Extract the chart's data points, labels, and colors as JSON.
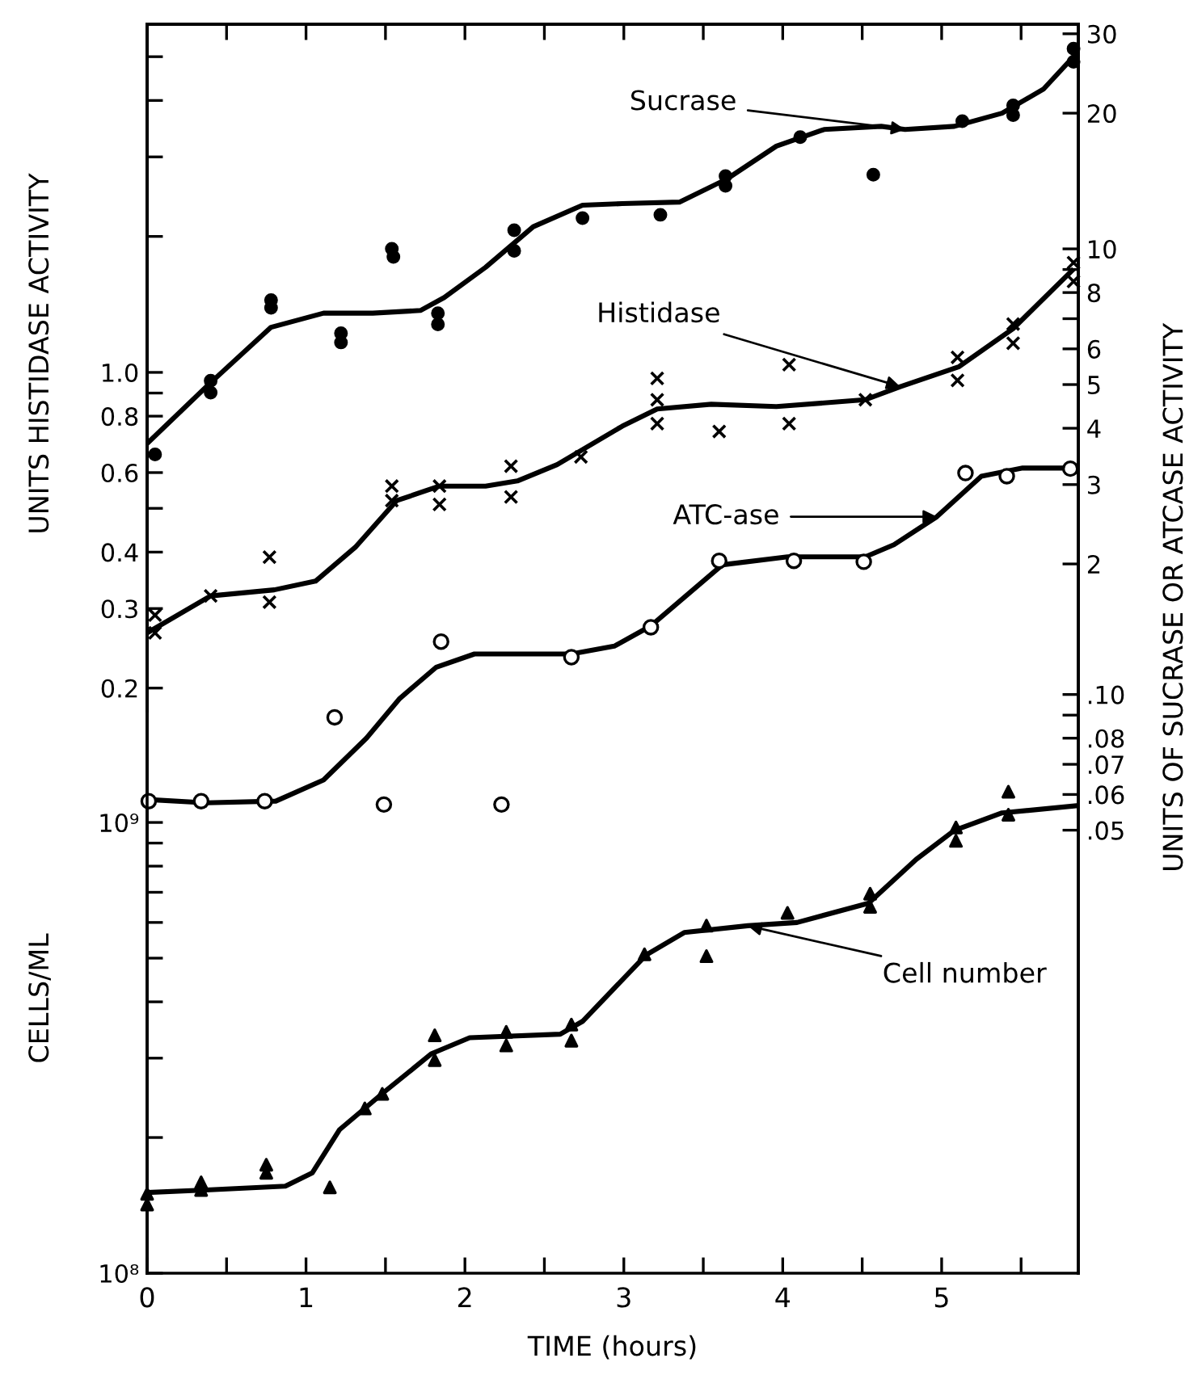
{
  "chart_data": [
    {
      "type": "line",
      "ylabel": "UNITS HISTIDASE ACTIVITY",
      "xlim": [
        0,
        5.86
      ],
      "tick_labels": "y",
      "ylim": [
        0.178,
        5.9
      ],
      "yticks": [
        {
          "value": 0.2,
          "label": "0.2"
        },
        {
          "value": 0.3,
          "label": "0.3"
        },
        {
          "value": 0.4,
          "label": "0.4"
        },
        {
          "value": 0.5,
          "label": null
        },
        {
          "value": 0.6,
          "label": "0.6"
        },
        {
          "value": 0.8,
          "label": "0.8"
        },
        {
          "value": 0.9,
          "label": null
        },
        {
          "value": 1.0,
          "label": "1.0"
        },
        {
          "value": 2,
          "label": null
        },
        {
          "value": 3,
          "label": null
        },
        {
          "value": 4,
          "label": null
        },
        {
          "value": 5,
          "label": null
        }
      ],
      "log": true,
      "grid": false,
      "legend": false,
      "series": [
        {
          "type": "scatter",
          "marker": "cross",
          "color": "#000000",
          "x": [
            0.05,
            0.05,
            0.4,
            0.77,
            0.77,
            1.54,
            1.54,
            1.84,
            1.84,
            2.29,
            2.29,
            2.73,
            3.21,
            3.21,
            3.21,
            3.6,
            4.04,
            4.04,
            4.52,
            5.1,
            5.1,
            5.45,
            5.45,
            5.83,
            5.83
          ],
          "values": [
            0.29,
            0.265,
            0.32,
            0.39,
            0.31,
            0.56,
            0.52,
            0.56,
            0.51,
            0.53,
            0.62,
            0.65,
            0.97,
            0.87,
            0.77,
            0.74,
            1.04,
            0.77,
            0.87,
            1.08,
            0.96,
            1.28,
            1.16,
            1.75,
            1.59
          ]
        },
        {
          "name": "Histidase",
          "color": "#000000",
          "line_style": "solid",
          "x": [
            0,
            0.4,
            0.8,
            1.06,
            1.31,
            1.57,
            1.84,
            2.13,
            2.33,
            2.58,
            2.99,
            3.21,
            3.55,
            3.96,
            4.52,
            4.74,
            5.11,
            5.45,
            5.82
          ],
          "values": [
            0.265,
            0.32,
            0.33,
            0.345,
            0.41,
            0.52,
            0.56,
            0.56,
            0.575,
            0.625,
            0.76,
            0.83,
            0.85,
            0.84,
            0.87,
            0.93,
            1.03,
            1.25,
            1.68
          ]
        }
      ]
    },
    {
      "type": "line",
      "ylabel": "UNITS OF SUCRASE OR ATCASE ACTIVITY",
      "xlim": [
        0,
        5.86
      ],
      "tick_labels": "y",
      "ylim": [
        0.944,
        31.5
      ],
      "yticks": [
        {
          "value": 2,
          "label": "2"
        },
        {
          "value": 3,
          "label": "3"
        },
        {
          "value": 4,
          "label": "4"
        },
        {
          "value": 5,
          "label": "5"
        },
        {
          "value": 6,
          "label": "6"
        },
        {
          "value": 7,
          "label": null
        },
        {
          "value": 8,
          "label": "8"
        },
        {
          "value": 9,
          "label": null
        },
        {
          "value": 10,
          "label": "10"
        },
        {
          "value": 20,
          "label": "20"
        },
        {
          "value": 30,
          "label": "30"
        }
      ],
      "log": true,
      "grid": false,
      "legend": false,
      "series": [
        {
          "type": "scatter",
          "marker": "circle",
          "color": "#000000",
          "x": [
            0.05,
            0.4,
            0.4,
            0.78,
            0.78,
            1.22,
            1.22,
            1.54,
            1.55,
            1.83,
            1.83,
            2.31,
            2.31,
            2.74,
            3.23,
            3.64,
            3.64,
            4.11,
            4.57,
            5.13,
            5.45,
            5.45,
            5.83,
            5.83
          ],
          "values": [
            3.5,
            5.1,
            4.8,
            7.7,
            7.4,
            6.5,
            6.2,
            10.0,
            9.6,
            7.2,
            6.8,
            11.0,
            9.9,
            11.7,
            11.9,
            14.5,
            13.8,
            17.7,
            14.6,
            19.2,
            20.8,
            19.8,
            27.8,
            26.0
          ]
        },
        {
          "name": "Sucrase",
          "color": "#000000",
          "line_style": "solid",
          "x": [
            0,
            0.4,
            0.78,
            1.11,
            1.42,
            1.72,
            1.87,
            2.13,
            2.43,
            2.74,
            2.99,
            3.35,
            3.65,
            3.96,
            4.26,
            4.62,
            4.77,
            5.08,
            5.38,
            5.64,
            5.86
          ],
          "values": [
            3.7,
            5.05,
            6.7,
            7.2,
            7.2,
            7.3,
            7.8,
            9.1,
            11.2,
            12.5,
            12.6,
            12.7,
            14.3,
            16.9,
            18.4,
            18.7,
            18.4,
            18.7,
            20.0,
            22.6,
            27.4
          ]
        }
      ]
    },
    {
      "type": "line",
      "xlim": [
        0,
        5.86
      ],
      "tick_labels": "y",
      "ylim": [
        0.0052,
        3.07
      ],
      "yticks": [
        {
          "value": 0.05,
          "label": ".05"
        },
        {
          "value": 0.06,
          "label": ".06"
        },
        {
          "value": 0.07,
          "label": ".07"
        },
        {
          "value": 0.08,
          "label": ".08"
        },
        {
          "value": 0.09,
          "label": null
        },
        {
          "value": 0.1,
          "label": ".10"
        }
      ],
      "log": true,
      "grid": false,
      "legend": false,
      "series": [
        {
          "type": "scatter",
          "marker": "circle",
          "color": "#ffffff",
          "x": [
            0.01,
            0.34,
            0.74,
            1.18,
            1.49,
            1.85,
            2.23,
            2.67,
            3.17,
            3.6,
            4.07,
            4.51,
            5.15,
            5.41,
            5.81
          ],
          "values": [
            0.058,
            0.058,
            0.058,
            0.089,
            0.057,
            0.131,
            0.057,
            0.121,
            0.141,
            0.198,
            0.198,
            0.197,
            0.31,
            0.305,
            0.317
          ]
        },
        {
          "name": "ATC-ase",
          "color": "#000000",
          "line_style": "solid",
          "x": [
            0,
            0.37,
            0.81,
            1.11,
            1.38,
            1.59,
            1.82,
            2.06,
            2.67,
            2.94,
            3.17,
            3.62,
            4.03,
            4.52,
            4.7,
            4.97,
            5.25,
            5.51,
            5.82
          ],
          "values": [
            0.0585,
            0.0575,
            0.058,
            0.0646,
            0.08,
            0.098,
            0.115,
            0.123,
            0.123,
            0.128,
            0.142,
            0.194,
            0.202,
            0.202,
            0.215,
            0.248,
            0.305,
            0.318,
            0.318
          ]
        }
      ]
    },
    {
      "type": "line",
      "xlabel": "TIME (hours)",
      "ylabel": "CELLS/ML",
      "xlim": [
        0,
        5.86
      ],
      "xticks": [
        {
          "value": 0,
          "label": "0"
        },
        {
          "value": 0.5,
          "label": null
        },
        {
          "value": 1,
          "label": "1"
        },
        {
          "value": 1.5,
          "label": null
        },
        {
          "value": 2,
          "label": "2"
        },
        {
          "value": 2.5,
          "label": null
        },
        {
          "value": 3,
          "label": "3"
        },
        {
          "value": 3.5,
          "label": null
        },
        {
          "value": 4,
          "label": "4"
        },
        {
          "value": 4.5,
          "label": null
        },
        {
          "value": 5,
          "label": "5"
        },
        {
          "value": 5.5,
          "label": null
        }
      ],
      "ylim": [
        100000000.0,
        59000000000.0
      ],
      "yticks": [
        {
          "value": 100000000.0,
          "label": "10⁸"
        },
        {
          "value": 200000000.0,
          "label": null
        },
        {
          "value": 300000000.0,
          "label": null
        },
        {
          "value": 400000000.0,
          "label": null
        },
        {
          "value": 500000000.0,
          "label": null
        },
        {
          "value": 600000000.0,
          "label": null
        },
        {
          "value": 700000000.0,
          "label": null
        },
        {
          "value": 800000000.0,
          "label": null
        },
        {
          "value": 900000000.0,
          "label": null
        },
        {
          "value": 1000000000.0,
          "label": "10⁹"
        }
      ],
      "log": true,
      "grid": false,
      "legend": false,
      "series": [
        {
          "type": "scatter",
          "marker": "triangle",
          "color": "#000000",
          "x": [
            0.0,
            0.0,
            0.34,
            0.34,
            0.75,
            0.75,
            1.15,
            1.37,
            1.48,
            1.81,
            1.81,
            2.26,
            2.26,
            2.67,
            2.67,
            3.13,
            3.52,
            3.52,
            4.03,
            4.55,
            4.55,
            5.09,
            5.09,
            5.42,
            5.42
          ],
          "values": [
            142000000.0,
            150000000.0,
            159000000.0,
            153000000.0,
            174000000.0,
            167000000.0,
            155000000.0,
            232000000.0,
            250000000.0,
            337000000.0,
            297000000.0,
            343000000.0,
            320000000.0,
            356000000.0,
            328000000.0,
            510000000.0,
            590000000.0,
            505000000.0,
            630000000.0,
            695000000.0,
            650000000.0,
            975000000.0,
            910000000.0,
            1170000000.0,
            1040000000.0
          ]
        },
        {
          "name": "Cell number",
          "color": "#000000",
          "line_style": "solid",
          "x": [
            0,
            0.37,
            0.87,
            1.04,
            1.21,
            1.49,
            1.79,
            2.03,
            2.6,
            2.74,
            3.14,
            3.38,
            3.78,
            4.09,
            4.54,
            4.84,
            5.08,
            5.38,
            5.86
          ],
          "values": [
            151000000.0,
            153000000.0,
            156000000.0,
            167000000.0,
            208000000.0,
            252000000.0,
            307000000.0,
            333000000.0,
            339000000.0,
            362000000.0,
            508000000.0,
            570000000.0,
            590000000.0,
            600000000.0,
            662000000.0,
            828000000.0,
            960000000.0,
            1050000000.0,
            1090000000.0
          ]
        }
      ]
    }
  ]
}
